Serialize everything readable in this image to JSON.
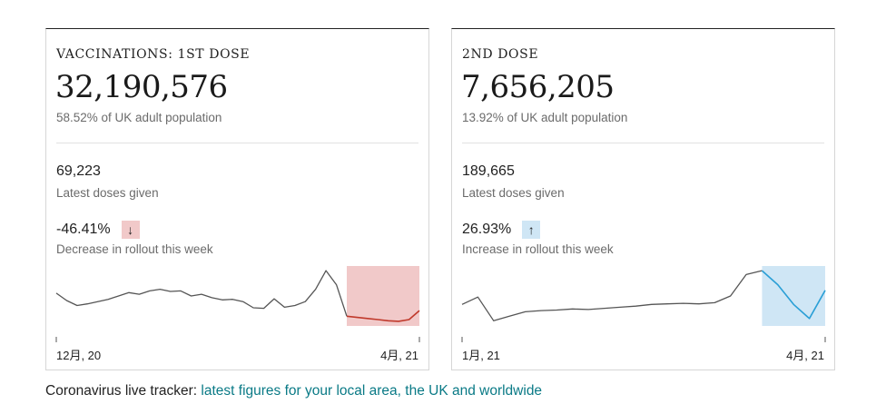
{
  "cards": [
    {
      "title": "VACCINATIONS: 1ST DOSE",
      "total": "32,190,576",
      "pct_text": "58.52% of UK adult population",
      "latest": "69,223",
      "latest_label": "Latest doses given",
      "change": "-46.41%",
      "change_arrow": "↓",
      "change_label": "Decrease in rollout this week",
      "x_start": "12月, 20",
      "x_end": "4月, 21",
      "highlight_color": "#f1c9c9",
      "highlight_line_color": "#c0392b"
    },
    {
      "title": "2ND DOSE",
      "total": "7,656,205",
      "pct_text": "13.92% of UK adult population",
      "latest": "189,665",
      "latest_label": "Latest doses given",
      "change": "26.93%",
      "change_arrow": "↑",
      "change_label": "Increase in rollout this week",
      "x_start": "1月, 21",
      "x_end": "4月, 21",
      "highlight_color": "#cfe6f5",
      "highlight_line_color": "#2a9fd6"
    }
  ],
  "chart_data": [
    {
      "type": "line",
      "title": "",
      "xlabel": "",
      "ylabel": "",
      "x_tick_labels": [
        "12月, 20",
        "4月, 21"
      ],
      "values": [
        0.55,
        0.42,
        0.33,
        0.36,
        0.4,
        0.44,
        0.5,
        0.56,
        0.53,
        0.59,
        0.62,
        0.58,
        0.59,
        0.5,
        0.53,
        0.47,
        0.43,
        0.44,
        0.4,
        0.29,
        0.28,
        0.45,
        0.3,
        0.33,
        0.4,
        0.62,
        0.95,
        0.7,
        0.14,
        0.12,
        0.1,
        0.08,
        0.06,
        0.05,
        0.08,
        0.24
      ],
      "highlight_last_n": 8,
      "grid": false,
      "legend": "none"
    },
    {
      "type": "line",
      "title": "",
      "xlabel": "",
      "ylabel": "",
      "x_tick_labels": [
        "1月, 21",
        "4月, 21"
      ],
      "values": [
        0.35,
        0.48,
        0.06,
        0.14,
        0.22,
        0.24,
        0.25,
        0.27,
        0.26,
        0.28,
        0.3,
        0.32,
        0.35,
        0.36,
        0.37,
        0.36,
        0.38,
        0.5,
        0.88,
        0.95,
        0.7,
        0.35,
        0.1,
        0.6
      ],
      "highlight_last_n": 5,
      "grid": false,
      "legend": "none"
    }
  ],
  "footer": {
    "prefix": "Coronavirus live tracker: ",
    "link_text": "latest figures for your local area, the UK and worldwide"
  }
}
